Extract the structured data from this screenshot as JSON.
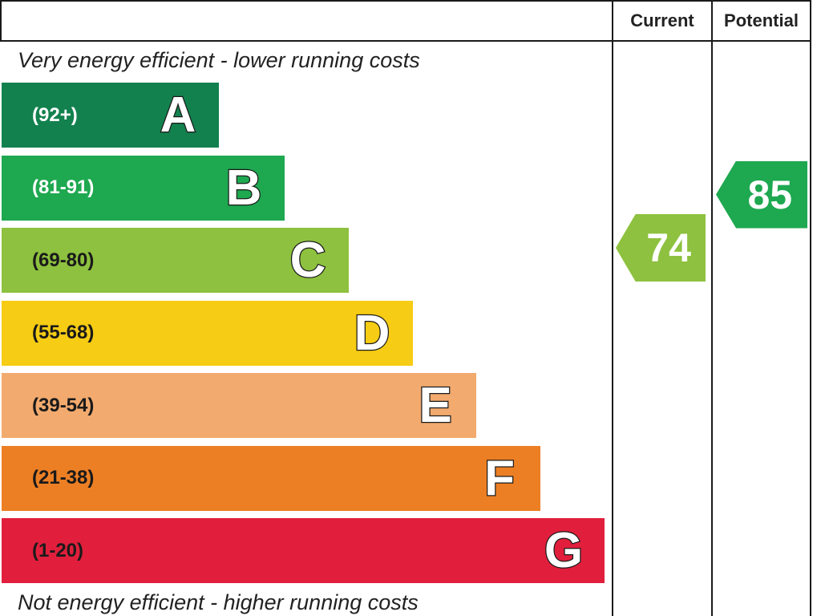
{
  "header": {
    "current_label": "Current",
    "potential_label": "Potential"
  },
  "captions": {
    "top": "Very energy efficient - lower running costs",
    "bottom": "Not energy efficient - higher running costs"
  },
  "bands": [
    {
      "letter": "A",
      "range": "(92+)",
      "color": "#12814e",
      "text_color": "#ffffff"
    },
    {
      "letter": "B",
      "range": "(81-91)",
      "color": "#1ea850",
      "text_color": "#ffffff"
    },
    {
      "letter": "C",
      "range": "(69-80)",
      "color": "#8dc13f",
      "text_color": "#1a1a1a"
    },
    {
      "letter": "D",
      "range": "(55-68)",
      "color": "#f6cc14",
      "text_color": "#1a1a1a"
    },
    {
      "letter": "E",
      "range": "(39-54)",
      "color": "#f2aa6e",
      "text_color": "#1a1a1a"
    },
    {
      "letter": "F",
      "range": "(21-38)",
      "color": "#ec7f24",
      "text_color": "#1a1a1a"
    },
    {
      "letter": "G",
      "range": "(1-20)",
      "color": "#e11f3c",
      "text_color": "#1a1a1a"
    }
  ],
  "ratings": {
    "current": {
      "value": "74",
      "band": "C",
      "color": "#8dc13f"
    },
    "potential": {
      "value": "85",
      "band": "B",
      "color": "#1ea850"
    }
  }
}
